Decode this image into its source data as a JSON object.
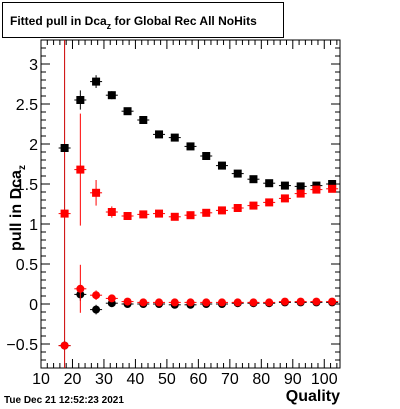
{
  "title": {
    "main": "Fitted pull in Dca",
    "subscript": "z",
    "rest": " for Global Rec All NoHits"
  },
  "timestamp": "Tue Dec 21 12:52:23 2021",
  "chart_data": {
    "type": "scatter",
    "xlabel": "Quality",
    "ylabel": "pull in Dca",
    "ylabel_sub": "z",
    "xlim": [
      10,
      105
    ],
    "ylim": [
      -0.8,
      3.3
    ],
    "xticks": [
      10,
      20,
      30,
      40,
      50,
      60,
      70,
      80,
      90,
      100
    ],
    "yticks": [
      -0.5,
      0,
      0.5,
      1,
      1.5,
      2,
      2.5,
      3
    ],
    "ytick_labels": [
      "−0.5",
      "0",
      "0.5",
      "1",
      "1.5",
      "2",
      "2.5",
      "3"
    ],
    "series": [
      {
        "marker": "square",
        "color": "#000000",
        "x": [
          17.5,
          22.5,
          27.5,
          32.5,
          37.5,
          42.5,
          47.5,
          52.5,
          57.5,
          62.5,
          67.5,
          72.5,
          77.5,
          82.5,
          87.5,
          92.5,
          97.5,
          102.5
        ],
        "y": [
          1.95,
          2.55,
          2.78,
          2.61,
          2.41,
          2.3,
          2.12,
          2.08,
          1.97,
          1.85,
          1.73,
          1.63,
          1.56,
          1.51,
          1.48,
          1.47,
          1.48,
          1.5
        ],
        "err": [
          0.0,
          0.12,
          0.08,
          0.05,
          0.04,
          0.03,
          0.03,
          0.03,
          0.03,
          0.02,
          0.02,
          0.02,
          0.02,
          0.02,
          0.02,
          0.02,
          0.02,
          0.02
        ]
      },
      {
        "marker": "square",
        "color": "#ff0000",
        "x": [
          17.5,
          22.5,
          27.5,
          32.5,
          37.5,
          42.5,
          47.5,
          52.5,
          57.5,
          62.5,
          67.5,
          72.5,
          77.5,
          82.5,
          87.5,
          92.5,
          97.5,
          102.5
        ],
        "y": [
          1.13,
          1.68,
          1.39,
          1.15,
          1.1,
          1.12,
          1.13,
          1.09,
          1.11,
          1.14,
          1.17,
          1.2,
          1.23,
          1.27,
          1.32,
          1.38,
          1.43,
          1.44
        ],
        "err": [
          0.0,
          0.7,
          0.16,
          0.07,
          0.04,
          0.03,
          0.03,
          0.03,
          0.03,
          0.02,
          0.02,
          0.02,
          0.02,
          0.02,
          0.02,
          0.02,
          0.02,
          0.02
        ]
      },
      {
        "marker": "circle",
        "color": "#000000",
        "x": [
          17.5,
          22.5,
          27.5,
          32.5,
          37.5,
          42.5,
          47.5,
          52.5,
          57.5,
          62.5,
          67.5,
          72.5,
          77.5,
          82.5,
          87.5,
          92.5,
          97.5,
          102.5
        ],
        "y": [
          -0.52,
          0.12,
          -0.07,
          0.01,
          0.0,
          0.0,
          0.0,
          -0.01,
          -0.01,
          0.0,
          0.0,
          0.01,
          0.01,
          0.01,
          0.02,
          0.02,
          0.02,
          0.02
        ],
        "err": [
          0.0,
          0.08,
          0.06,
          0.04,
          0.03,
          0.02,
          0.02,
          0.02,
          0.02,
          0.02,
          0.02,
          0.02,
          0.02,
          0.02,
          0.02,
          0.02,
          0.02,
          0.02
        ]
      },
      {
        "marker": "circle",
        "color": "#ff0000",
        "x": [
          17.5,
          22.5,
          27.5,
          32.5,
          37.5,
          42.5,
          47.5,
          52.5,
          57.5,
          62.5,
          67.5,
          72.5,
          77.5,
          82.5,
          87.5,
          92.5,
          97.5,
          102.5
        ],
        "y": [
          -0.52,
          0.19,
          0.11,
          0.07,
          0.03,
          0.02,
          0.02,
          0.02,
          0.02,
          0.02,
          0.02,
          0.02,
          0.02,
          0.02,
          0.03,
          0.03,
          0.03,
          0.03
        ],
        "err": [
          0.0,
          0.3,
          0.06,
          0.04,
          0.03,
          0.02,
          0.02,
          0.02,
          0.02,
          0.02,
          0.02,
          0.02,
          0.02,
          0.02,
          0.02,
          0.02,
          0.02,
          0.02
        ]
      }
    ],
    "vertical_bar": {
      "x": 17.5,
      "y_low": -0.8,
      "y_high": 3.3,
      "color": "#cc0000"
    }
  }
}
